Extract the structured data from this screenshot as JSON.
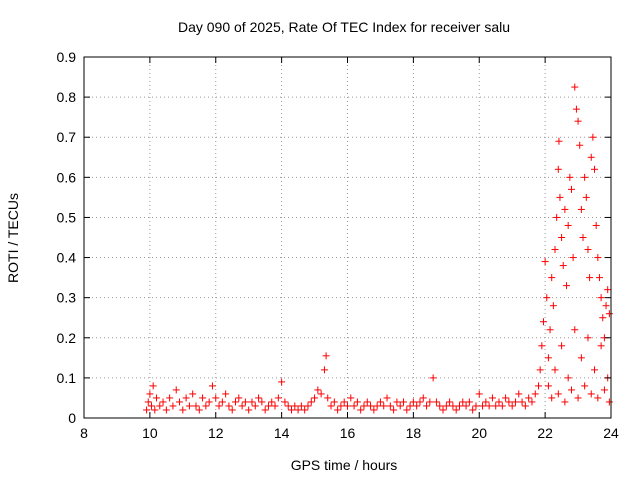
{
  "chart_data": {
    "type": "scatter",
    "title": "Day 090 of 2025, Rate Of TEC Index for receiver salu",
    "xlabel": "GPS time / hours",
    "ylabel": "ROTI / TECUs",
    "xlim": [
      8,
      24
    ],
    "ylim": [
      0,
      0.9
    ],
    "xticks": [
      "8",
      "10",
      "12",
      "14",
      "16",
      "18",
      "20",
      "22",
      "24"
    ],
    "yticks": [
      "0",
      "0.1",
      "0.2",
      "0.3",
      "0.4",
      "0.5",
      "0.6",
      "0.7",
      "0.8",
      "0.9"
    ],
    "grid": true,
    "marker": "+",
    "color": "#ff0000",
    "points": [
      [
        9.9,
        0.02
      ],
      [
        9.95,
        0.04
      ],
      [
        10.0,
        0.06
      ],
      [
        10.05,
        0.03
      ],
      [
        10.1,
        0.08
      ],
      [
        10.15,
        0.02
      ],
      [
        10.2,
        0.05
      ],
      [
        10.3,
        0.03
      ],
      [
        10.4,
        0.04
      ],
      [
        10.5,
        0.02
      ],
      [
        10.6,
        0.05
      ],
      [
        10.7,
        0.03
      ],
      [
        10.8,
        0.07
      ],
      [
        10.9,
        0.04
      ],
      [
        11.0,
        0.02
      ],
      [
        11.1,
        0.05
      ],
      [
        11.2,
        0.03
      ],
      [
        11.3,
        0.06
      ],
      [
        11.4,
        0.03
      ],
      [
        11.5,
        0.02
      ],
      [
        11.6,
        0.05
      ],
      [
        11.7,
        0.03
      ],
      [
        11.8,
        0.04
      ],
      [
        11.9,
        0.08
      ],
      [
        12.0,
        0.05
      ],
      [
        12.1,
        0.03
      ],
      [
        12.2,
        0.04
      ],
      [
        12.3,
        0.06
      ],
      [
        12.4,
        0.03
      ],
      [
        12.5,
        0.02
      ],
      [
        12.6,
        0.04
      ],
      [
        12.7,
        0.05
      ],
      [
        12.8,
        0.03
      ],
      [
        12.9,
        0.04
      ],
      [
        13.0,
        0.02
      ],
      [
        13.1,
        0.04
      ],
      [
        13.2,
        0.03
      ],
      [
        13.3,
        0.05
      ],
      [
        13.4,
        0.04
      ],
      [
        13.5,
        0.02
      ],
      [
        13.6,
        0.03
      ],
      [
        13.7,
        0.04
      ],
      [
        13.8,
        0.03
      ],
      [
        13.9,
        0.05
      ],
      [
        14.0,
        0.09
      ],
      [
        14.1,
        0.04
      ],
      [
        14.2,
        0.03
      ],
      [
        14.3,
        0.02
      ],
      [
        14.4,
        0.03
      ],
      [
        14.5,
        0.02
      ],
      [
        14.6,
        0.03
      ],
      [
        14.7,
        0.02
      ],
      [
        14.8,
        0.03
      ],
      [
        14.9,
        0.04
      ],
      [
        15.0,
        0.05
      ],
      [
        15.1,
        0.07
      ],
      [
        15.2,
        0.06
      ],
      [
        15.3,
        0.12
      ],
      [
        15.35,
        0.155
      ],
      [
        15.4,
        0.05
      ],
      [
        15.5,
        0.03
      ],
      [
        15.6,
        0.04
      ],
      [
        15.7,
        0.02
      ],
      [
        15.8,
        0.03
      ],
      [
        15.9,
        0.04
      ],
      [
        16.0,
        0.03
      ],
      [
        16.1,
        0.05
      ],
      [
        16.2,
        0.03
      ],
      [
        16.3,
        0.04
      ],
      [
        16.4,
        0.02
      ],
      [
        16.5,
        0.03
      ],
      [
        16.6,
        0.04
      ],
      [
        16.7,
        0.03
      ],
      [
        16.8,
        0.02
      ],
      [
        16.9,
        0.03
      ],
      [
        17.0,
        0.04
      ],
      [
        17.1,
        0.03
      ],
      [
        17.2,
        0.05
      ],
      [
        17.3,
        0.03
      ],
      [
        17.4,
        0.02
      ],
      [
        17.5,
        0.04
      ],
      [
        17.6,
        0.03
      ],
      [
        17.7,
        0.04
      ],
      [
        17.8,
        0.02
      ],
      [
        17.9,
        0.03
      ],
      [
        18.0,
        0.04
      ],
      [
        18.1,
        0.03
      ],
      [
        18.2,
        0.04
      ],
      [
        18.3,
        0.05
      ],
      [
        18.4,
        0.03
      ],
      [
        18.5,
        0.04
      ],
      [
        18.6,
        0.1
      ],
      [
        18.7,
        0.04
      ],
      [
        18.8,
        0.03
      ],
      [
        18.9,
        0.02
      ],
      [
        19.0,
        0.03
      ],
      [
        19.1,
        0.04
      ],
      [
        19.2,
        0.03
      ],
      [
        19.3,
        0.02
      ],
      [
        19.4,
        0.03
      ],
      [
        19.5,
        0.04
      ],
      [
        19.6,
        0.03
      ],
      [
        19.7,
        0.04
      ],
      [
        19.8,
        0.02
      ],
      [
        19.9,
        0.03
      ],
      [
        20.0,
        0.06
      ],
      [
        20.1,
        0.03
      ],
      [
        20.2,
        0.04
      ],
      [
        20.3,
        0.03
      ],
      [
        20.4,
        0.05
      ],
      [
        20.5,
        0.03
      ],
      [
        20.6,
        0.04
      ],
      [
        20.7,
        0.03
      ],
      [
        20.8,
        0.05
      ],
      [
        20.9,
        0.04
      ],
      [
        21.0,
        0.03
      ],
      [
        21.1,
        0.04
      ],
      [
        21.2,
        0.06
      ],
      [
        21.3,
        0.04
      ],
      [
        21.4,
        0.03
      ],
      [
        21.5,
        0.05
      ],
      [
        21.6,
        0.04
      ],
      [
        21.7,
        0.06
      ],
      [
        21.8,
        0.08
      ],
      [
        21.85,
        0.12
      ],
      [
        21.9,
        0.18
      ],
      [
        21.95,
        0.24
      ],
      [
        22.0,
        0.39
      ],
      [
        22.05,
        0.3
      ],
      [
        22.1,
        0.15
      ],
      [
        22.15,
        0.22
      ],
      [
        22.2,
        0.35
      ],
      [
        22.25,
        0.28
      ],
      [
        22.3,
        0.42
      ],
      [
        22.35,
        0.5
      ],
      [
        22.4,
        0.62
      ],
      [
        22.42,
        0.69
      ],
      [
        22.45,
        0.55
      ],
      [
        22.5,
        0.45
      ],
      [
        22.55,
        0.38
      ],
      [
        22.6,
        0.52
      ],
      [
        22.65,
        0.33
      ],
      [
        22.7,
        0.48
      ],
      [
        22.75,
        0.6
      ],
      [
        22.8,
        0.57
      ],
      [
        22.85,
        0.4
      ],
      [
        22.9,
        0.825
      ],
      [
        22.95,
        0.77
      ],
      [
        23.0,
        0.74
      ],
      [
        23.05,
        0.68
      ],
      [
        23.1,
        0.52
      ],
      [
        23.15,
        0.45
      ],
      [
        23.2,
        0.6
      ],
      [
        23.25,
        0.55
      ],
      [
        23.3,
        0.42
      ],
      [
        23.35,
        0.35
      ],
      [
        23.4,
        0.65
      ],
      [
        23.45,
        0.7
      ],
      [
        23.5,
        0.62
      ],
      [
        23.55,
        0.48
      ],
      [
        23.6,
        0.4
      ],
      [
        23.65,
        0.35
      ],
      [
        23.7,
        0.3
      ],
      [
        23.75,
        0.25
      ],
      [
        23.8,
        0.2
      ],
      [
        23.85,
        0.28
      ],
      [
        23.9,
        0.32
      ],
      [
        23.95,
        0.26
      ],
      [
        22.1,
        0.08
      ],
      [
        22.3,
        0.12
      ],
      [
        22.5,
        0.18
      ],
      [
        22.7,
        0.1
      ],
      [
        22.9,
        0.22
      ],
      [
        23.1,
        0.15
      ],
      [
        23.3,
        0.2
      ],
      [
        23.5,
        0.12
      ],
      [
        23.7,
        0.18
      ],
      [
        23.9,
        0.1
      ],
      [
        22.2,
        0.05
      ],
      [
        22.4,
        0.06
      ],
      [
        22.6,
        0.04
      ],
      [
        22.8,
        0.07
      ],
      [
        23.0,
        0.05
      ],
      [
        23.2,
        0.08
      ],
      [
        23.4,
        0.06
      ],
      [
        23.6,
        0.05
      ],
      [
        23.8,
        0.07
      ],
      [
        23.95,
        0.04
      ]
    ]
  }
}
